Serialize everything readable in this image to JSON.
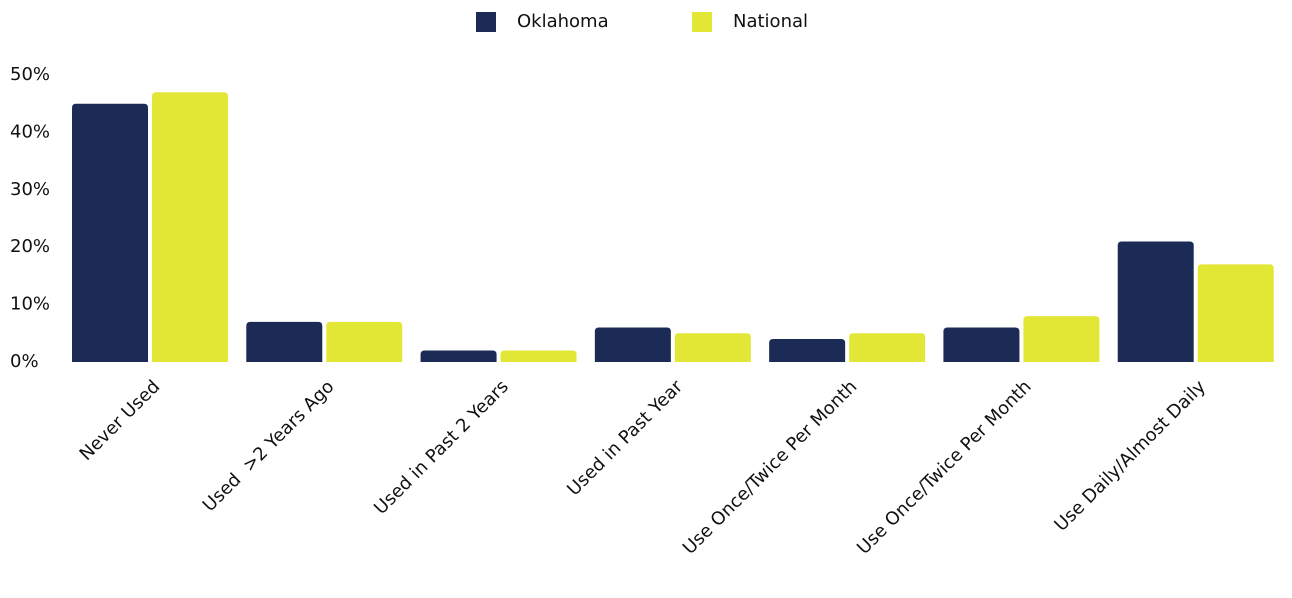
{
  "chart_data": {
    "type": "bar",
    "categories": [
      "Never Used",
      "Used  >2 Years Ago",
      "Used in Past 2 Years",
      "Used in Past Year",
      "Use Once/Twice Per Month",
      "Use Once/Twice Per Month",
      "Use Daily/Almost Daily"
    ],
    "series": [
      {
        "name": "Oklahoma",
        "color": "#1b2b55",
        "values": [
          45,
          7,
          2,
          6,
          4,
          6,
          21
        ]
      },
      {
        "name": "National",
        "color": "#e2e735",
        "values": [
          47,
          7,
          2,
          5,
          5,
          8,
          17
        ]
      }
    ],
    "ylim": [
      0,
      50
    ],
    "yticks": [
      {
        "value": 0,
        "label": "0%"
      },
      {
        "value": 10,
        "label": "10%"
      },
      {
        "value": 20,
        "label": "20%"
      },
      {
        "value": 30,
        "label": "30%"
      },
      {
        "value": 40,
        "label": "40%"
      },
      {
        "value": 50,
        "label": "50%"
      }
    ],
    "grid": false,
    "legend": "top"
  }
}
